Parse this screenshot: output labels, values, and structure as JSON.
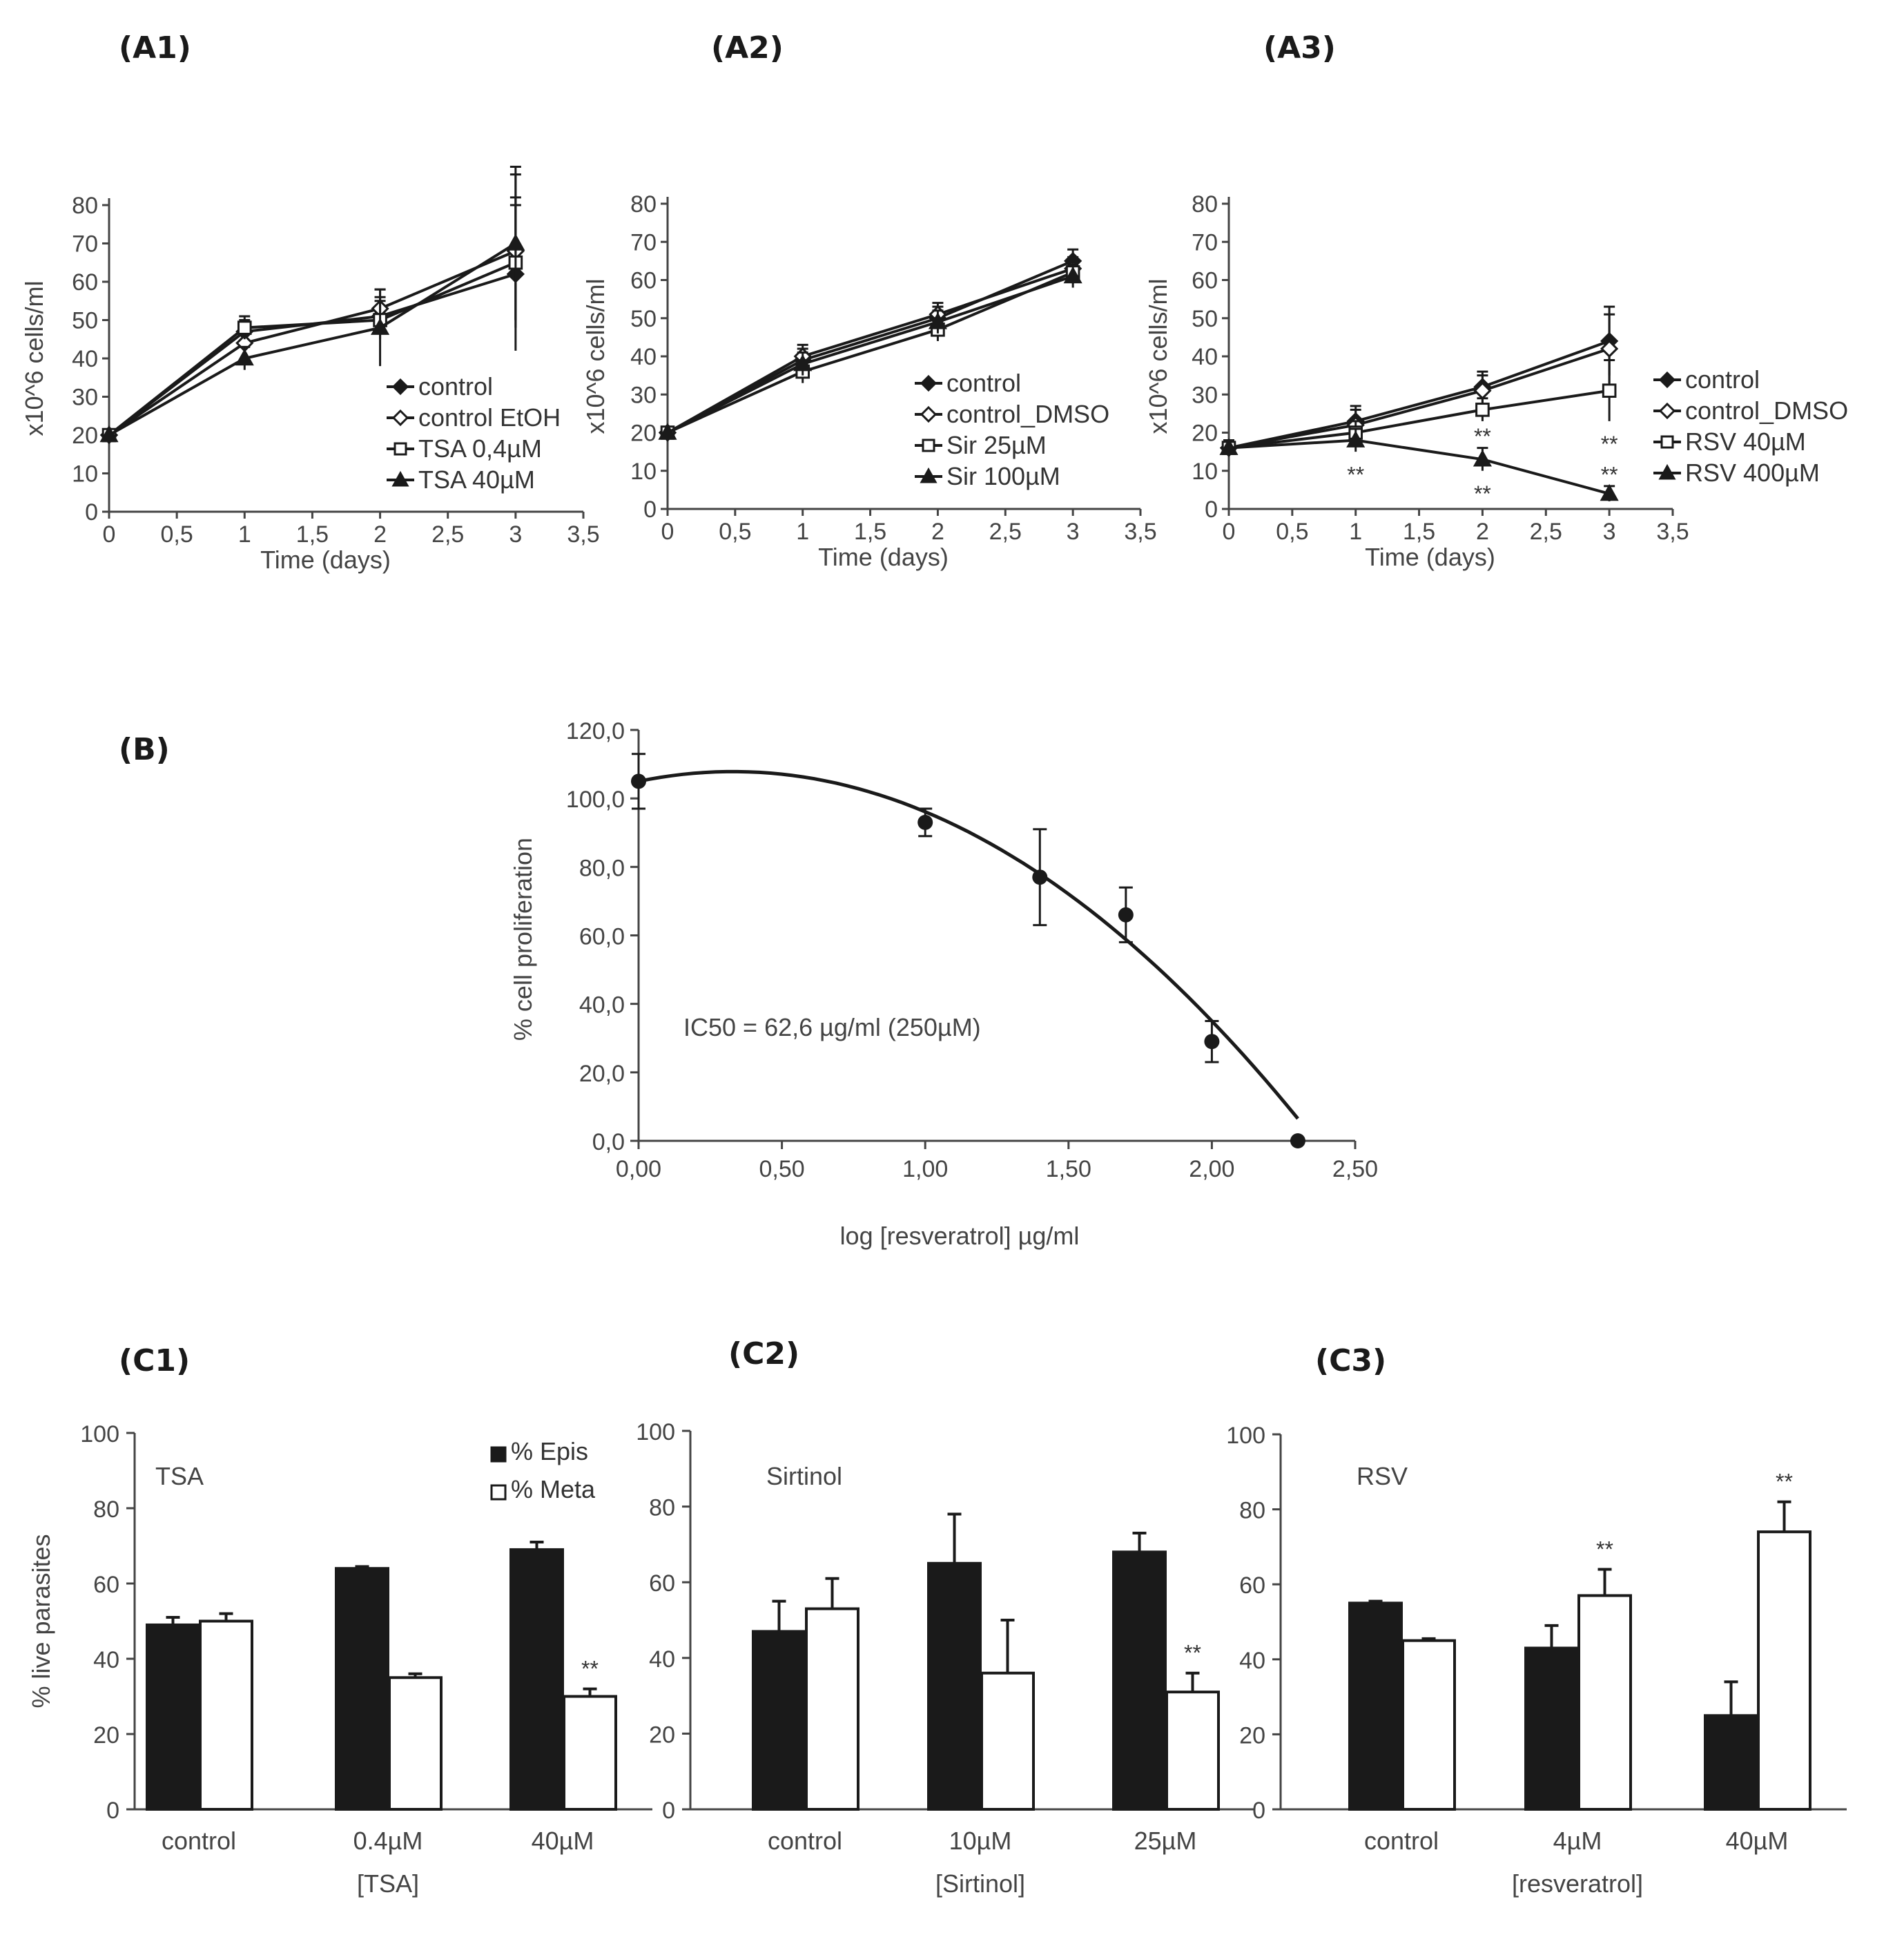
{
  "panels": {
    "A1": "(A1)",
    "A2": "(A2)",
    "A3": "(A3)",
    "B": "(B)",
    "C1": "(C1)",
    "C2": "(C2)",
    "C3": "(C3)"
  },
  "chart_data": [
    {
      "id": "A1",
      "type": "line",
      "xlabel": "Time (days)",
      "ylabel": "x10^6 cells/ml",
      "xlim": [
        0,
        3.5
      ],
      "ylim": [
        0,
        80
      ],
      "xticks": [
        "0",
        "0,5",
        "1",
        "1,5",
        "2",
        "2,5",
        "3",
        "3,5"
      ],
      "yticks": [
        "0",
        "10",
        "20",
        "30",
        "40",
        "50",
        "60",
        "70",
        "80"
      ],
      "x": [
        0,
        1,
        2,
        3
      ],
      "legend_position": "bottom-right",
      "series": [
        {
          "name": "control",
          "marker": "diamond-filled",
          "values": [
            20,
            47,
            51,
            62
          ],
          "err": [
            0,
            3,
            5,
            20
          ]
        },
        {
          "name": "control EtOH",
          "marker": "diamond-open",
          "values": [
            20,
            44,
            53,
            68
          ],
          "err": [
            0,
            3,
            5,
            20
          ]
        },
        {
          "name": "TSA 0,4µM",
          "marker": "square-open",
          "values": [
            20,
            48,
            50,
            65
          ],
          "err": [
            0,
            3,
            5,
            15
          ]
        },
        {
          "name": "TSA 40µM",
          "marker": "triangle-filled",
          "values": [
            20,
            40,
            48,
            70
          ],
          "err": [
            0,
            3,
            10,
            20
          ]
        }
      ]
    },
    {
      "id": "A2",
      "type": "line",
      "xlabel": "Time (days)",
      "ylabel": "x10^6 cells/ml",
      "xlim": [
        0,
        3.5
      ],
      "ylim": [
        0,
        80
      ],
      "xticks": [
        "0",
        "0,5",
        "1",
        "1,5",
        "2",
        "2,5",
        "3",
        "3,5"
      ],
      "yticks": [
        "0",
        "10",
        "20",
        "30",
        "40",
        "50",
        "60",
        "70",
        "80"
      ],
      "x": [
        0,
        1,
        2,
        3
      ],
      "legend_position": "bottom-right",
      "series": [
        {
          "name": "control",
          "marker": "diamond-filled",
          "values": [
            20,
            39,
            50,
            65
          ],
          "err": [
            0,
            3,
            3,
            3
          ]
        },
        {
          "name": "control_DMSO",
          "marker": "diamond-open",
          "values": [
            20,
            40,
            51,
            63
          ],
          "err": [
            0,
            3,
            3,
            3
          ]
        },
        {
          "name": "Sir 25µM",
          "marker": "square-open",
          "values": [
            20,
            36,
            47,
            62
          ],
          "err": [
            0,
            3,
            3,
            3
          ]
        },
        {
          "name": "Sir 100µM",
          "marker": "triangle-filled",
          "values": [
            20,
            38,
            49,
            61
          ],
          "err": [
            0,
            3,
            3,
            3
          ]
        }
      ]
    },
    {
      "id": "A3",
      "type": "line",
      "xlabel": "Time (days)",
      "ylabel": "x10^6 cells/ml",
      "xlim": [
        0,
        3.5
      ],
      "ylim": [
        0,
        80
      ],
      "xticks": [
        "0",
        "0,5",
        "1",
        "1,5",
        "2",
        "2,5",
        "3",
        "3,5"
      ],
      "yticks": [
        "0",
        "10",
        "20",
        "30",
        "40",
        "50",
        "60",
        "70",
        "80"
      ],
      "x": [
        0,
        1,
        2,
        3
      ],
      "legend_position": "right",
      "series": [
        {
          "name": "control",
          "marker": "diamond-filled",
          "values": [
            16,
            23,
            32,
            44
          ],
          "err": [
            2,
            4,
            4,
            9
          ]
        },
        {
          "name": "control_DMSO",
          "marker": "diamond-open",
          "values": [
            16,
            22,
            31,
            42
          ],
          "err": [
            2,
            4,
            4,
            9
          ]
        },
        {
          "name": "RSV 40µM",
          "marker": "square-open",
          "values": [
            16,
            20,
            26,
            31
          ],
          "err": [
            2,
            3,
            3,
            8
          ]
        },
        {
          "name": "RSV 400µM",
          "marker": "triangle-filled",
          "values": [
            16,
            18,
            13,
            4
          ],
          "err": [
            2,
            3,
            3,
            2
          ]
        }
      ],
      "annotations": [
        {
          "x": 1,
          "y": 7,
          "text": "**"
        },
        {
          "x": 2,
          "y": 17,
          "text": "**"
        },
        {
          "x": 2,
          "y": 2,
          "text": "**"
        },
        {
          "x": 3,
          "y": 15,
          "text": "**"
        },
        {
          "x": 3,
          "y": 7,
          "text": "**"
        }
      ]
    },
    {
      "id": "B",
      "type": "scatter",
      "xlabel": "log [resveratrol] µg/ml",
      "ylabel": "% cell proliferation",
      "xlim": [
        0,
        2.5
      ],
      "ylim": [
        0,
        120
      ],
      "xticks": [
        "0,00",
        "0,50",
        "1,00",
        "1,50",
        "2,00",
        "2,50"
      ],
      "yticks": [
        "0,0",
        "20,0",
        "40,0",
        "60,0",
        "80,0",
        "100,0",
        "120,0"
      ],
      "points": [
        {
          "x": 0.0,
          "y": 105,
          "err": 8
        },
        {
          "x": 1.0,
          "y": 93,
          "err": 4
        },
        {
          "x": 1.4,
          "y": 77,
          "err": 14
        },
        {
          "x": 1.7,
          "y": 66,
          "err": 8
        },
        {
          "x": 2.0,
          "y": 29,
          "err": 6
        },
        {
          "x": 2.3,
          "y": 0,
          "err": 0
        }
      ],
      "fit": {
        "a": -26.1,
        "b": 17.2,
        "c": 105
      },
      "annotation": "IC50 = 62,6 µg/ml (250µM)"
    },
    {
      "id": "C1",
      "type": "bar",
      "title": "TSA",
      "ylabel": "% live parasites",
      "xlabel": "[TSA]",
      "ylim": [
        0,
        100
      ],
      "yticks": [
        "0",
        "20",
        "40",
        "60",
        "80",
        "100"
      ],
      "categories": [
        "control",
        "0.4µM",
        "40µM"
      ],
      "legend_position": "top-right",
      "series": [
        {
          "name": "% Epis",
          "fill": "#1a1a1a",
          "values": [
            49,
            64,
            69
          ],
          "err": [
            2,
            0.5,
            2
          ]
        },
        {
          "name": "% Meta",
          "fill": "#ffffff",
          "values": [
            50,
            35,
            30
          ],
          "err": [
            2,
            1,
            2
          ]
        }
      ],
      "significance": [
        {
          "category": 2,
          "series": 1,
          "text": "**"
        }
      ]
    },
    {
      "id": "C2",
      "type": "bar",
      "title": "Sirtinol",
      "xlabel": "[Sirtinol]",
      "ylim": [
        0,
        100
      ],
      "yticks": [
        "0",
        "20",
        "40",
        "60",
        "80",
        "100"
      ],
      "categories": [
        "control",
        "10µM",
        "25µM"
      ],
      "series": [
        {
          "name": "% Epis",
          "fill": "#1a1a1a",
          "values": [
            47,
            65,
            68
          ],
          "err": [
            8,
            13,
            5
          ]
        },
        {
          "name": "% Meta",
          "fill": "#ffffff",
          "values": [
            53,
            36,
            31
          ],
          "err": [
            8,
            14,
            5
          ]
        }
      ],
      "significance": [
        {
          "category": 2,
          "series": 1,
          "text": "**"
        }
      ]
    },
    {
      "id": "C3",
      "type": "bar",
      "title": "RSV",
      "xlabel": "[resveratrol]",
      "ylim": [
        0,
        100
      ],
      "yticks": [
        "0",
        "20",
        "40",
        "60",
        "80",
        "100"
      ],
      "categories": [
        "control",
        "4µM",
        "40µM"
      ],
      "series": [
        {
          "name": "% Epis",
          "fill": "#1a1a1a",
          "values": [
            55,
            43,
            25
          ],
          "err": [
            0.5,
            6,
            9
          ]
        },
        {
          "name": "% Meta",
          "fill": "#ffffff",
          "values": [
            45,
            57,
            74
          ],
          "err": [
            0.5,
            7,
            8
          ]
        }
      ],
      "significance": [
        {
          "category": 1,
          "series": 1,
          "text": "**"
        },
        {
          "category": 2,
          "series": 1,
          "text": "**"
        }
      ]
    }
  ]
}
